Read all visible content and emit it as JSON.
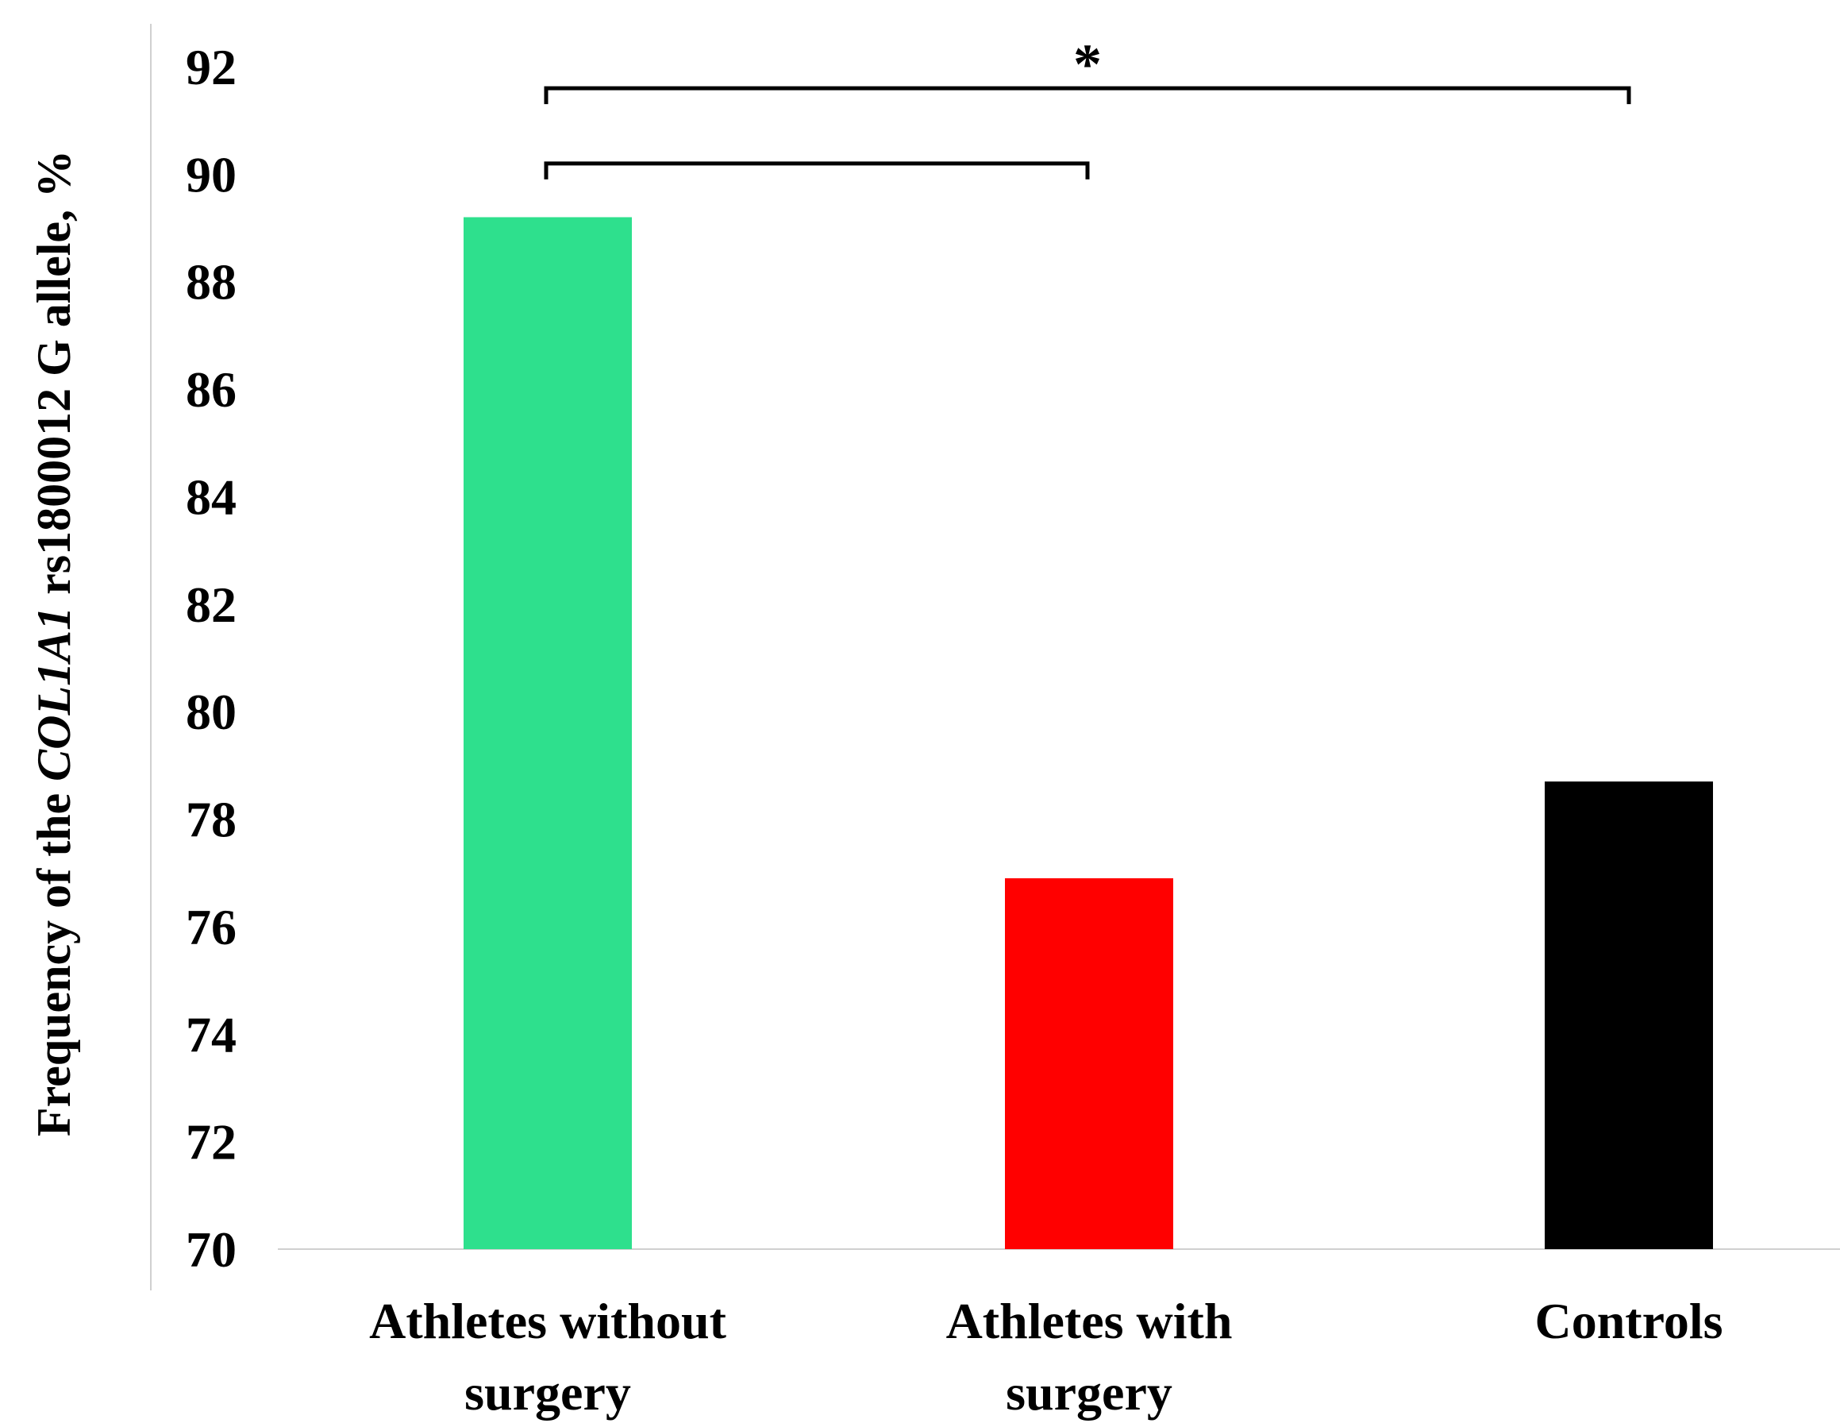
{
  "chart_data": {
    "type": "bar",
    "categories": [
      [
        "Athletes without",
        "surgery"
      ],
      [
        "Athletes with",
        "surgery"
      ],
      [
        "Controls"
      ]
    ],
    "values": [
      89.2,
      76.9,
      78.7
    ],
    "colors": [
      "#2ee08d",
      "#ff0000",
      "#000000"
    ],
    "ylim": [
      70,
      92
    ],
    "yticks": [
      70,
      72,
      74,
      76,
      78,
      80,
      82,
      84,
      86,
      88,
      90,
      92
    ],
    "ylabel": {
      "before": "Frequency of the ",
      "gene": "COL1A1",
      "after": " rs1800012 G allele, %"
    },
    "xlabel": "",
    "grid": false,
    "significance": [
      {
        "from": 0,
        "to": 2,
        "level": 91.6,
        "label": "*"
      },
      {
        "from": 0,
        "to": 1,
        "level": 90.2,
        "label": ""
      }
    ]
  }
}
